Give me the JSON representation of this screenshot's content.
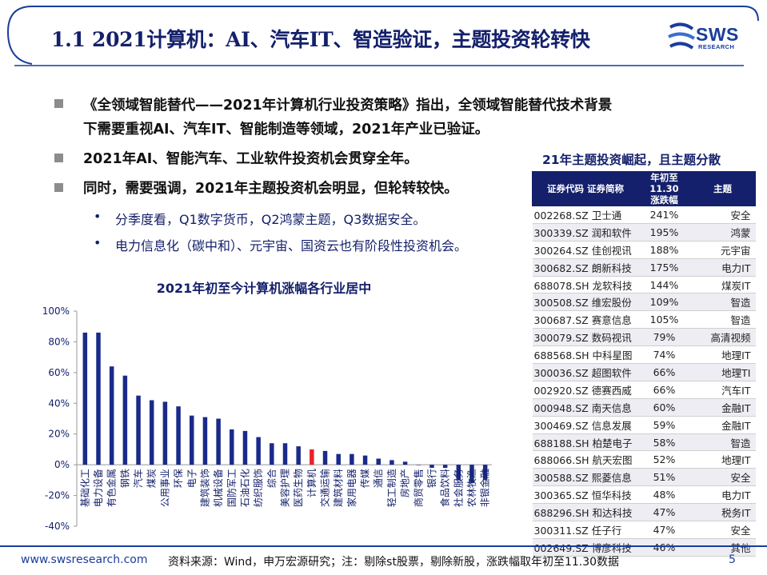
{
  "header": {
    "title": "1.1 2021计算机：AI、汽车IT、智造验证，主题投资轮转快",
    "logo_text": "SWS",
    "logo_sub": "RESEARCH"
  },
  "bullets": {
    "level1": [
      [
        "《全领域智能替代——2021年计算机行业投资策略》指出，全领域智能替代技术背景",
        "下需要重视AI、汽车IT、智能制造等领域，2021年产业已验证。"
      ],
      [
        "2021年AI、智能汽车、工业软件投资机会贯穿全年。"
      ],
      [
        "同时，需要强调，2021年主题投资机会明显，但轮转较快。"
      ]
    ],
    "level2": [
      "分季度看，Q1数字货币，Q2鸿蒙主题，Q3数据安全。",
      "电力信息化（碳中和）、元宇宙、国资云也有阶段性投资机会。"
    ]
  },
  "chart_title": "2021年初至今计算机涨幅各行业居中",
  "chart_data": {
    "type": "bar",
    "categories": [
      "基础化工",
      "电力设备",
      "有色金属",
      "钢铁",
      "汽车",
      "煤炭",
      "公用事业",
      "环保",
      "电子",
      "建筑装饰",
      "机械设备",
      "国防军工",
      "石油石化",
      "纺织服饰",
      "综合",
      "美容护理",
      "医药生物",
      "计算机",
      "交通运输",
      "建筑材料",
      "家用电器",
      "传媒",
      "通信",
      "轻工制造",
      "房地产",
      "商贸零售",
      "银行",
      "食品饮料",
      "社会服务",
      "农林牧渔",
      "非银金融"
    ],
    "values": [
      86,
      86,
      64,
      58,
      45,
      42,
      41,
      38,
      32,
      31,
      30,
      23,
      22,
      18,
      14,
      14,
      12,
      10,
      9,
      7,
      7,
      6,
      4,
      3,
      2,
      0,
      -2,
      -2,
      -10,
      -12,
      -10
    ],
    "highlight_category": "计算机",
    "ylim": [
      -40,
      100
    ],
    "yticks": [
      "100%",
      "80%",
      "60%",
      "40%",
      "20%",
      "0%",
      "-20%",
      "-40%"
    ],
    "colors": {
      "bar": "#1a2a8a",
      "highlight": "#e8222c"
    },
    "grid": false
  },
  "table": {
    "title": "21年主题投资崛起，且主题分散",
    "headers": {
      "code_name": "证券代码 证券简称",
      "change_line1": "年初至11.30",
      "change_line2": "涨跌幅",
      "theme": "主题"
    },
    "rows": [
      {
        "code": "002268.SZ",
        "name": "卫士通",
        "change": "241%",
        "theme": "安全"
      },
      {
        "code": "300339.SZ",
        "name": "润和软件",
        "change": "195%",
        "theme": "鸿蒙"
      },
      {
        "code": "300264.SZ",
        "name": "佳创视讯",
        "change": "188%",
        "theme": "元宇宙"
      },
      {
        "code": "300682.SZ",
        "name": "朗新科技",
        "change": "175%",
        "theme": "电力IT"
      },
      {
        "code": "688078.SH",
        "name": "龙软科技",
        "change": "144%",
        "theme": "煤炭IT"
      },
      {
        "code": "300508.SZ",
        "name": "维宏股份",
        "change": "109%",
        "theme": "智造"
      },
      {
        "code": "300687.SZ",
        "name": "赛意信息",
        "change": "105%",
        "theme": "智造"
      },
      {
        "code": "300079.SZ",
        "name": "数码视讯",
        "change": "79%",
        "theme": "高清视频"
      },
      {
        "code": "688568.SH",
        "name": "中科星图",
        "change": "74%",
        "theme": "地理IT"
      },
      {
        "code": "300036.SZ",
        "name": "超图软件",
        "change": "66%",
        "theme": "地理TI"
      },
      {
        "code": "002920.SZ",
        "name": "德赛西威",
        "change": "66%",
        "theme": "汽车IT"
      },
      {
        "code": "000948.SZ",
        "name": "南天信息",
        "change": "60%",
        "theme": "金融IT"
      },
      {
        "code": "300469.SZ",
        "name": "信息发展",
        "change": "59%",
        "theme": "金融IT"
      },
      {
        "code": "688188.SH",
        "name": "柏楚电子",
        "change": "58%",
        "theme": "智造"
      },
      {
        "code": "688066.SH",
        "name": "航天宏图",
        "change": "52%",
        "theme": "地理IT"
      },
      {
        "code": "300588.SZ",
        "name": "熙菱信息",
        "change": "51%",
        "theme": "安全"
      },
      {
        "code": "300365.SZ",
        "name": "恒华科技",
        "change": "48%",
        "theme": "电力IT"
      },
      {
        "code": "688296.SH",
        "name": "和达科技",
        "change": "47%",
        "theme": "税务IT"
      },
      {
        "code": "300311.SZ",
        "name": "任子行",
        "change": "47%",
        "theme": "安全"
      },
      {
        "code": "002649.SZ",
        "name": "博彦科技",
        "change": "46%",
        "theme": "其他"
      }
    ]
  },
  "footer": {
    "url": "www.swsresearch.com",
    "source": "资料来源：Wind，申万宏源研究；注：剔除st股票，剔除新股，涨跌幅取年初至11.30数据",
    "page": "5"
  }
}
